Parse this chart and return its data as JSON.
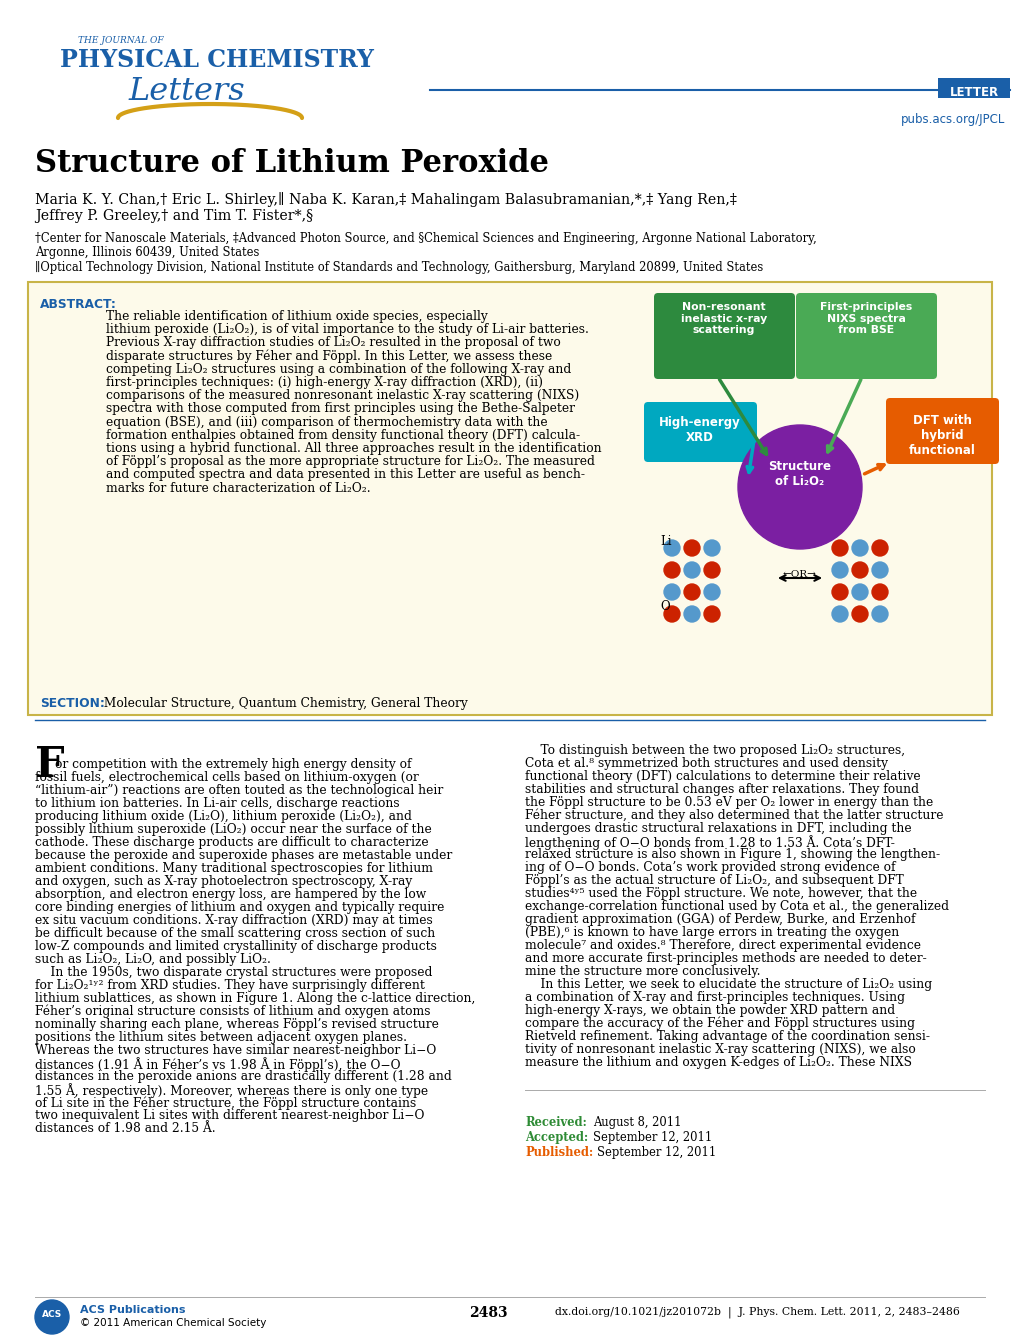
{
  "title": "Structure of Lithium Peroxide",
  "authors_line1": "Maria K. Y. Chan,† Eric L. Shirley,∥ Naba K. Karan,‡ Mahalingam Balasubramanian,*,‡ Yang Ren,‡",
  "authors_line2": "Jeffrey P. Greeley,† and Tim T. Fister*,§",
  "affil1": "†Center for Nanoscale Materials, ‡Advanced Photon Source, and §Chemical Sciences and Engineering, Argonne National Laboratory,",
  "affil2": "Argonne, Illinois 60439, United States",
  "affil3": "∥Optical Technology Division, National Institute of Standards and Technology, Gaithersburg, Maryland 20899, United States",
  "abstract_lines": [
    "The reliable identification of lithium oxide species, especially",
    "lithium peroxide (Li₂O₂), is of vital importance to the study of Li-air batteries.",
    "Previous X-ray diffraction studies of Li₂O₂ resulted in the proposal of two",
    "disparate structures by Féher and Föppl. In this Letter, we assess these",
    "competing Li₂O₂ structures using a combination of the following X-ray and",
    "first-principles techniques: (i) high-energy X-ray diffraction (XRD), (ii)",
    "comparisons of the measured nonresonant inelastic X-ray scattering (NIXS)",
    "spectra with those computed from first principles using the Bethe-Salpeter",
    "equation (BSE), and (iii) comparison of thermochemistry data with the",
    "formation enthalpies obtained from density functional theory (DFT) calcula-",
    "tions using a hybrid functional. All three approaches result in the identification",
    "of Föppl’s proposal as the more appropriate structure for Li₂O₂. The measured",
    "and computed spectra and data presented in this Letter are useful as bench-",
    "marks for future characterization of Li₂O₂."
  ],
  "left_body_lines": [
    "or competition with the extremely high energy density of",
    "fossil fuels, electrochemical cells based on lithium-oxygen (or",
    "“lithium-air”) reactions are often touted as the technological heir",
    "to lithium ion batteries. In Li-air cells, discharge reactions",
    "producing lithium oxide (Li₂O), lithium peroxide (Li₂O₂), and",
    "possibly lithium superoxide (LiO₂) occur near the surface of the",
    "cathode. These discharge products are difficult to characterize",
    "because the peroxide and superoxide phases are metastable under",
    "ambient conditions. Many traditional spectroscopies for lithium",
    "and oxygen, such as X-ray photoelectron spectroscopy, X-ray",
    "absorption, and electron energy loss, are hampered by the low",
    "core binding energies of lithium and oxygen and typically require",
    "ex situ vacuum conditions. X-ray diffraction (XRD) may at times",
    "be difficult because of the small scattering cross section of such",
    "low-Z compounds and limited crystallinity of discharge products",
    "such as Li₂O₂, Li₂O, and possibly LiO₂.",
    "    In the 1950s, two disparate crystal structures were proposed",
    "for Li₂O₂¹ʸ² from XRD studies. They have surprisingly different",
    "lithium sublattices, as shown in Figure 1. Along the c-lattice direction,",
    "Féher’s original structure consists of lithium and oxygen atoms",
    "nominally sharing each plane, whereas Föppl’s revised structure",
    "positions the lithium sites between adjacent oxygen planes.",
    "Whereas the two structures have similar nearest-neighbor Li−O",
    "distances (1.91 Å in Féher’s vs 1.98 Å in Föppl’s), the O−O",
    "distances in the peroxide anions are drastically different (1.28 and",
    "1.55 Å, respectively). Moreover, whereas there is only one type",
    "of Li site in the Féher structure, the Föppl structure contains",
    "two inequivalent Li sites with different nearest-neighbor Li−O",
    "distances of 1.98 and 2.15 Å."
  ],
  "right_body_lines": [
    "    To distinguish between the two proposed Li₂O₂ structures,",
    "Cota et al.⁸ symmetrized both structures and used density",
    "functional theory (DFT) calculations to determine their relative",
    "stabilities and structural changes after relaxations. They found",
    "the Föppl structure to be 0.53 eV per O₂ lower in energy than the",
    "Féher structure, and they also determined that the latter structure",
    "undergoes drastic structural relaxations in DFT, including the",
    "lengthening of O−O bonds from 1.28 to 1.53 Å. Cota’s DFT-",
    "relaxed structure is also shown in Figure 1, showing the lengthen-",
    "ing of O−O bonds. Cota’s work provided strong evidence of",
    "Föppl’s as the actual structure of Li₂O₂, and subsequent DFT",
    "studies⁴ʸ⁵ used the Föppl structure. We note, however, that the",
    "exchange-correlation functional used by Cota et al., the generalized",
    "gradient approximation (GGA) of Perdew, Burke, and Erzenhof",
    "(PBE),⁶ is known to have large errors in treating the oxygen",
    "molecule⁷ and oxides.⁸ Therefore, direct experimental evidence",
    "and more accurate first-principles methods are needed to deter-",
    "mine the structure more conclusively.",
    "    In this Letter, we seek to elucidate the structure of Li₂O₂ using",
    "a combination of X-ray and first-principles techniques. Using",
    "high-energy X-rays, we obtain the powder XRD pattern and",
    "compare the accuracy of the Féher and Föppl structures using",
    "Rietveld refinement. Taking advantage of the coordination sensi-",
    "tivity of nonresonant inelastic X-ray scattering (NIXS), we also",
    "measure the lithium and oxygen K-edges of Li₂O₂. These NIXS"
  ],
  "received": "August 8, 2011",
  "accepted": "September 12, 2011",
  "published": "September 12, 2011",
  "page_num": "2483",
  "doi": "dx.doi.org/10.1021/jz201072b  |  J. Phys. Chem. Lett. 2011, 2, 2483–2486",
  "copyright": "© 2011 American Chemical Society",
  "blue": "#1a5fa8",
  "green_dark": "#2d8a3e",
  "green_light": "#4aaa55",
  "orange": "#e65c00",
  "cyan": "#00a8c0",
  "purple": "#7b1fa2",
  "red_o": "#cc2200",
  "blue_li": "#5599cc"
}
